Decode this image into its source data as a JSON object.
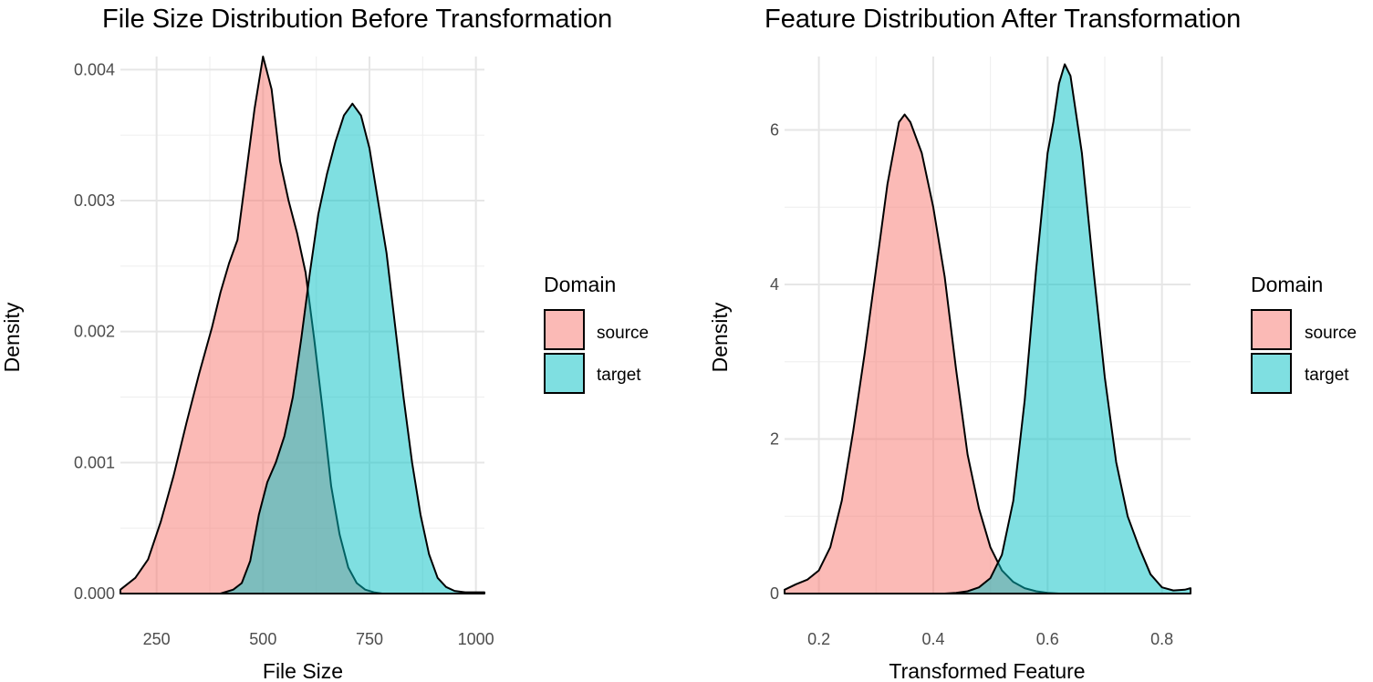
{
  "colors": {
    "source": "#F8766D",
    "target": "#00BFC4"
  },
  "chart_data": [
    {
      "type": "area",
      "title": "File Size Distribution Before Transformation",
      "xlabel": "File Size",
      "ylabel": "Density",
      "xlim": [
        165,
        1020
      ],
      "ylim": [
        0,
        0.0041
      ],
      "x_ticks": [
        250,
        500,
        750,
        1000
      ],
      "x_tick_labels": [
        "250",
        "500",
        "750",
        "1000"
      ],
      "y_ticks": [
        0,
        0.001,
        0.002,
        0.003,
        0.004
      ],
      "y_tick_labels": [
        "0.000",
        "0.001",
        "0.002",
        "0.003",
        "0.004"
      ],
      "legend": {
        "title": "Domain",
        "position": "right",
        "labels": [
          "source",
          "target"
        ]
      },
      "series": [
        {
          "name": "source",
          "points": [
            [
              165,
              3e-05
            ],
            [
              200,
              0.00012
            ],
            [
              230,
              0.00026
            ],
            [
              260,
              0.00055
            ],
            [
              290,
              0.0009
            ],
            [
              320,
              0.0013
            ],
            [
              350,
              0.00168
            ],
            [
              380,
              0.00203
            ],
            [
              400,
              0.0023
            ],
            [
              420,
              0.00252
            ],
            [
              440,
              0.0027
            ],
            [
              460,
              0.0032
            ],
            [
              480,
              0.0037
            ],
            [
              500,
              0.0041
            ],
            [
              520,
              0.00385
            ],
            [
              540,
              0.0033
            ],
            [
              560,
              0.003
            ],
            [
              580,
              0.00275
            ],
            [
              600,
              0.00245
            ],
            [
              620,
              0.00195
            ],
            [
              640,
              0.0014
            ],
            [
              660,
              0.00082
            ],
            [
              680,
              0.00045
            ],
            [
              700,
              0.0002
            ],
            [
              720,
              8e-05
            ],
            [
              740,
              3e-05
            ],
            [
              760,
              1e-05
            ],
            [
              780,
              0.0
            ]
          ]
        },
        {
          "name": "target",
          "points": [
            [
              400,
              0.0
            ],
            [
              430,
              3e-05
            ],
            [
              450,
              8e-05
            ],
            [
              470,
              0.00025
            ],
            [
              490,
              0.0006
            ],
            [
              510,
              0.00085
            ],
            [
              530,
              0.001
            ],
            [
              550,
              0.0012
            ],
            [
              570,
              0.0015
            ],
            [
              590,
              0.00195
            ],
            [
              610,
              0.00245
            ],
            [
              630,
              0.0029
            ],
            [
              650,
              0.0032
            ],
            [
              670,
              0.00345
            ],
            [
              690,
              0.00365
            ],
            [
              710,
              0.00374
            ],
            [
              730,
              0.00365
            ],
            [
              750,
              0.0034
            ],
            [
              770,
              0.003
            ],
            [
              790,
              0.0026
            ],
            [
              810,
              0.00205
            ],
            [
              830,
              0.0015
            ],
            [
              850,
              0.001
            ],
            [
              870,
              0.0006
            ],
            [
              890,
              0.0003
            ],
            [
              910,
              0.00012
            ],
            [
              930,
              5e-05
            ],
            [
              950,
              2e-05
            ],
            [
              975,
              1e-05
            ],
            [
              1020,
              1e-05
            ]
          ]
        }
      ]
    },
    {
      "type": "area",
      "title": "Feature Distribution After Transformation",
      "xlabel": "Transformed Feature",
      "ylabel": "Density",
      "xlim": [
        0.14,
        0.85
      ],
      "ylim": [
        0,
        6.95
      ],
      "x_ticks": [
        0.2,
        0.4,
        0.6,
        0.8
      ],
      "x_tick_labels": [
        "0.2",
        "0.4",
        "0.6",
        "0.8"
      ],
      "y_ticks": [
        0,
        2,
        4,
        6
      ],
      "y_tick_labels": [
        "0",
        "2",
        "4",
        "6"
      ],
      "legend": {
        "title": "Domain",
        "position": "right",
        "labels": [
          "source",
          "target"
        ]
      },
      "series": [
        {
          "name": "source",
          "points": [
            [
              0.14,
              0.05
            ],
            [
              0.16,
              0.12
            ],
            [
              0.18,
              0.18
            ],
            [
              0.2,
              0.3
            ],
            [
              0.22,
              0.6
            ],
            [
              0.24,
              1.2
            ],
            [
              0.26,
              2.1
            ],
            [
              0.28,
              3.1
            ],
            [
              0.3,
              4.2
            ],
            [
              0.32,
              5.3
            ],
            [
              0.34,
              6.1
            ],
            [
              0.35,
              6.2
            ],
            [
              0.36,
              6.1
            ],
            [
              0.38,
              5.7
            ],
            [
              0.4,
              5.0
            ],
            [
              0.42,
              4.1
            ],
            [
              0.44,
              2.9
            ],
            [
              0.46,
              1.8
            ],
            [
              0.48,
              1.1
            ],
            [
              0.5,
              0.6
            ],
            [
              0.52,
              0.3
            ],
            [
              0.54,
              0.15
            ],
            [
              0.56,
              0.07
            ],
            [
              0.58,
              0.03
            ],
            [
              0.6,
              0.01
            ],
            [
              0.62,
              0.0
            ]
          ]
        },
        {
          "name": "target",
          "points": [
            [
              0.42,
              0.0
            ],
            [
              0.44,
              0.01
            ],
            [
              0.46,
              0.03
            ],
            [
              0.48,
              0.08
            ],
            [
              0.5,
              0.2
            ],
            [
              0.52,
              0.5
            ],
            [
              0.54,
              1.2
            ],
            [
              0.56,
              2.5
            ],
            [
              0.58,
              4.2
            ],
            [
              0.6,
              5.7
            ],
            [
              0.61,
              6.1
            ],
            [
              0.62,
              6.6
            ],
            [
              0.63,
              6.85
            ],
            [
              0.64,
              6.7
            ],
            [
              0.66,
              5.7
            ],
            [
              0.68,
              4.2
            ],
            [
              0.7,
              2.8
            ],
            [
              0.72,
              1.7
            ],
            [
              0.74,
              1.0
            ],
            [
              0.76,
              0.6
            ],
            [
              0.78,
              0.25
            ],
            [
              0.8,
              0.08
            ],
            [
              0.82,
              0.04
            ],
            [
              0.84,
              0.05
            ],
            [
              0.85,
              0.07
            ]
          ]
        }
      ]
    }
  ]
}
